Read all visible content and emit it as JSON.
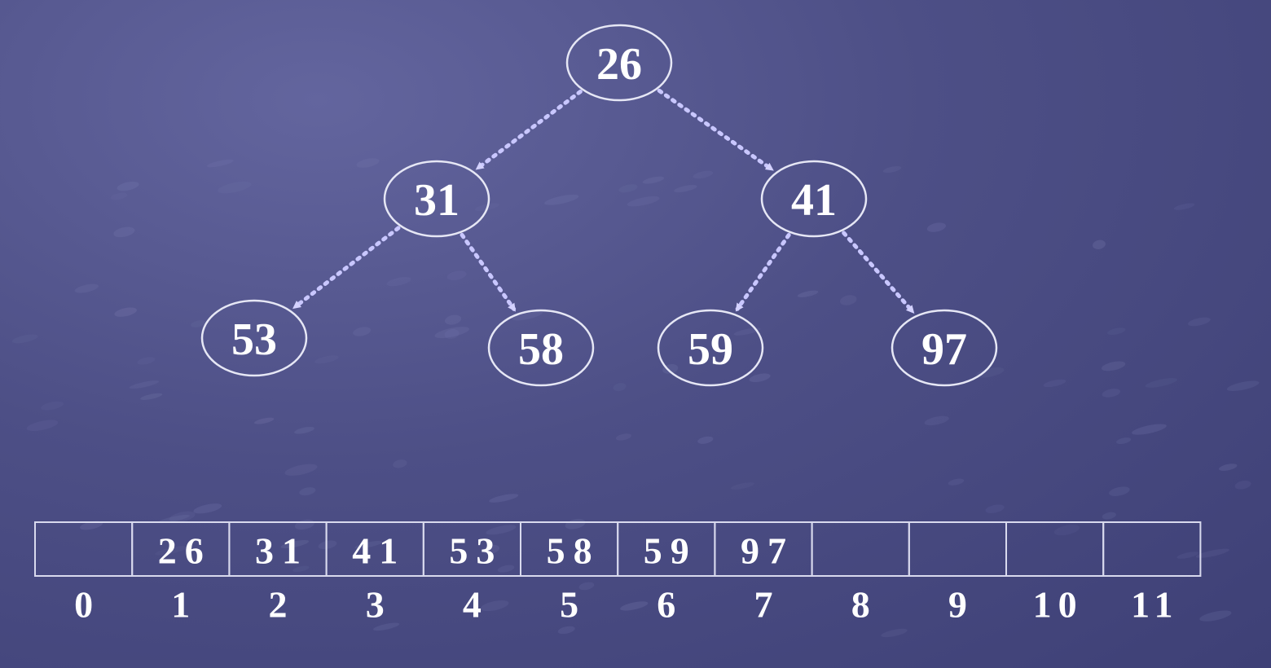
{
  "colors": {
    "background": "#4d4f86",
    "node_stroke": "#e6e7f5",
    "edge": "#c9c7ff",
    "text": "#ffffff"
  },
  "tree": {
    "nodes": [
      {
        "id": "n1",
        "label": "26"
      },
      {
        "id": "n2",
        "label": "31"
      },
      {
        "id": "n3",
        "label": "41"
      },
      {
        "id": "n4",
        "label": "53"
      },
      {
        "id": "n5",
        "label": "58"
      },
      {
        "id": "n6",
        "label": "59"
      },
      {
        "id": "n7",
        "label": "97"
      }
    ],
    "edges": [
      {
        "from": "n1",
        "to": "n2"
      },
      {
        "from": "n1",
        "to": "n3"
      },
      {
        "from": "n2",
        "to": "n4"
      },
      {
        "from": "n2",
        "to": "n5"
      },
      {
        "from": "n3",
        "to": "n6"
      },
      {
        "from": "n3",
        "to": "n7"
      }
    ]
  },
  "array": {
    "cells": [
      "",
      "26",
      "31",
      "41",
      "53",
      "58",
      "59",
      "97",
      "",
      "",
      "",
      ""
    ],
    "indices": [
      "0",
      "1",
      "2",
      "3",
      "4",
      "5",
      "6",
      "7",
      "8",
      "9",
      "10",
      "11"
    ]
  }
}
